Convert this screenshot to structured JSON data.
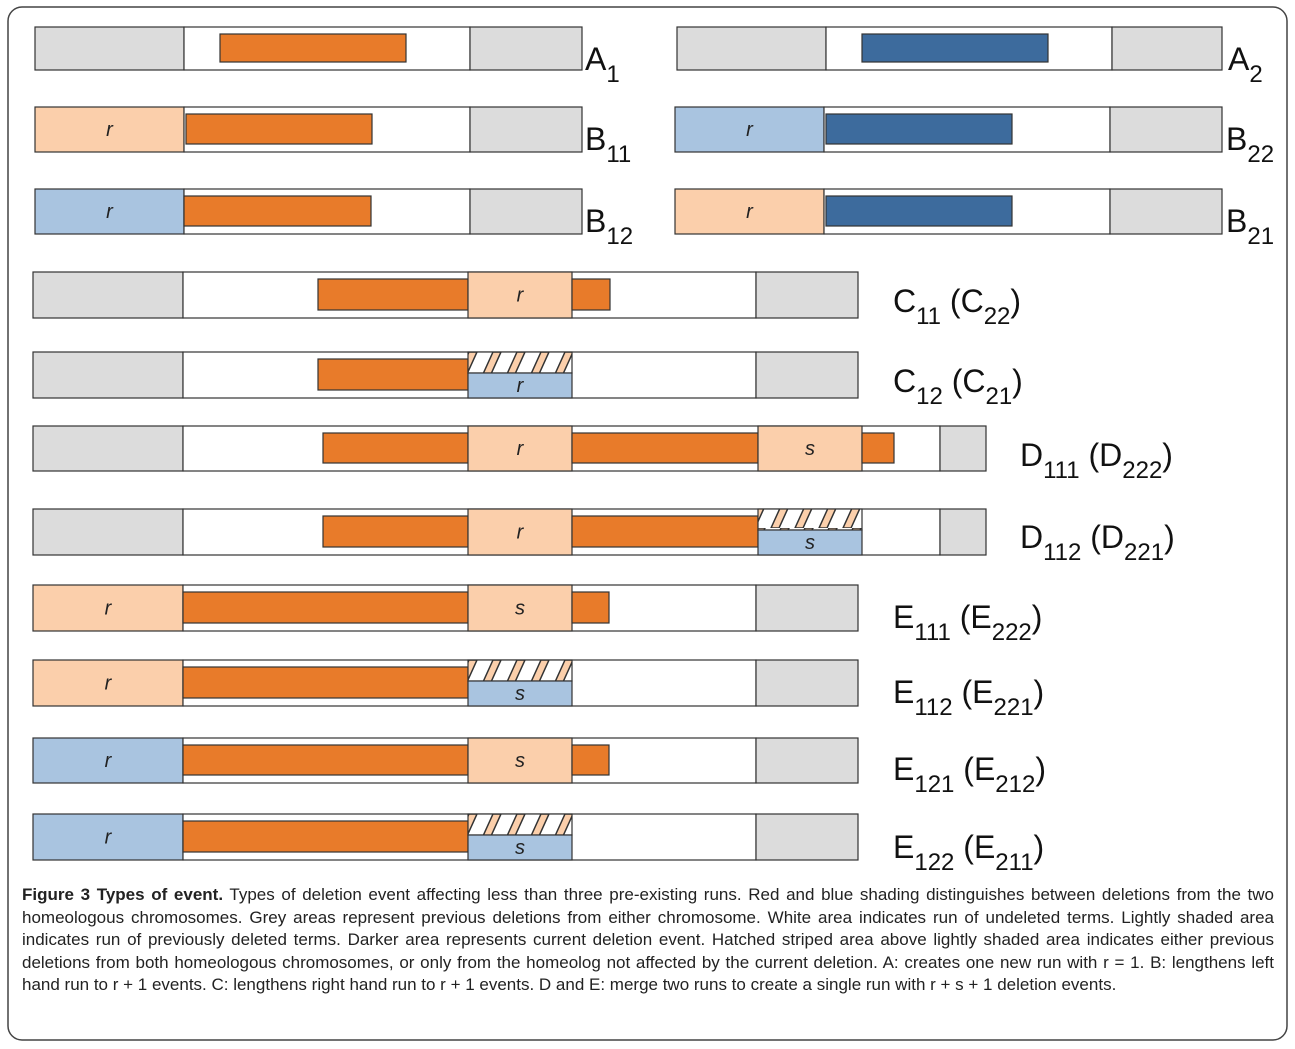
{
  "rows": [
    {
      "label": [
        "A",
        "1"
      ],
      "boxes": []
    },
    {
      "label": [
        "A",
        "2"
      ],
      "boxes": []
    },
    {
      "label": [
        "B",
        "11"
      ],
      "boxes": [
        "r"
      ]
    },
    {
      "label": [
        "B",
        "22"
      ],
      "boxes": [
        "r"
      ]
    },
    {
      "label": [
        "B",
        "12"
      ],
      "boxes": [
        "r"
      ]
    },
    {
      "label": [
        "B",
        "21"
      ],
      "boxes": [
        "r"
      ]
    },
    {
      "label": [
        "C",
        "11",
        " (C",
        "22",
        ")"
      ],
      "boxes": [
        "r"
      ]
    },
    {
      "label": [
        "C",
        "12",
        " (C",
        "21",
        ")"
      ],
      "boxes": [
        "r"
      ]
    },
    {
      "label": [
        "D",
        "111",
        " (D",
        "222",
        ")"
      ],
      "boxes": [
        "r",
        "s"
      ]
    },
    {
      "label": [
        "D",
        "112",
        " (D",
        "221",
        ")"
      ],
      "boxes": [
        "r",
        "s"
      ]
    },
    {
      "label": [
        "E",
        "111",
        " (E",
        "222",
        ")"
      ],
      "boxes": [
        "r",
        "s"
      ]
    },
    {
      "label": [
        "E",
        "112",
        " (E",
        "221",
        ")"
      ],
      "boxes": [
        "r",
        "s"
      ]
    },
    {
      "label": [
        "E",
        "121",
        " (E",
        "212",
        ")"
      ],
      "boxes": [
        "r",
        "s"
      ]
    },
    {
      "label": [
        "E",
        "122",
        " (E",
        "211",
        ")"
      ],
      "boxes": [
        "r",
        "s"
      ]
    }
  ],
  "caption": {
    "title": "Figure 3 Types of event.",
    "text": "Types of deletion event affecting less than three pre-existing runs. Red and blue shading distinguishes between deletions from the two homeologous chromosomes. Grey areas represent previous deletions from either chromosome. White area indicates run of undeleted terms. Lightly shaded area indicates run of previously deleted terms. Darker area represents current deletion event. Hatched striped area above lightly shaded area indicates either previous deletions from both homeologous chromosomes, or only from the homeolog not affected by the current deletion. A: creates one new run with r = 1. B: lengthens left hand run to r + 1 events. C: lengthens right hand run to r + 1 events. D and E: merge two runs to create a single run with r + s + 1 deletion events."
  }
}
